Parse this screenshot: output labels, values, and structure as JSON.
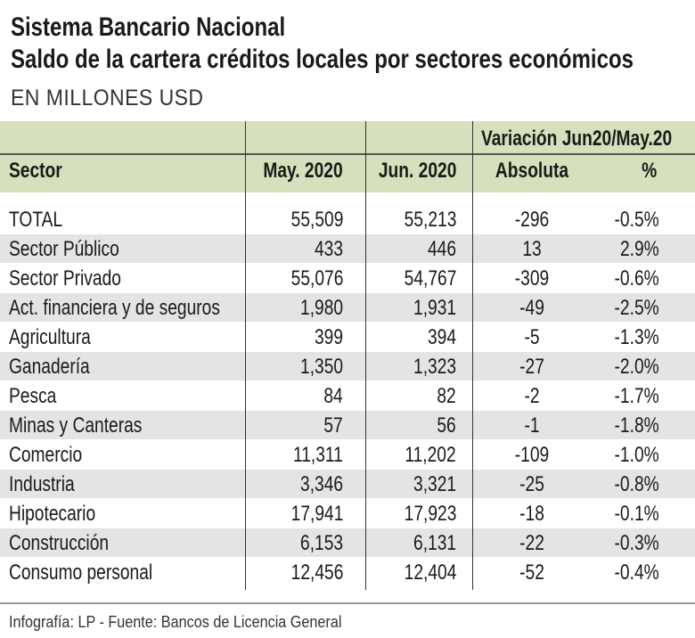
{
  "title": "Sistema Bancario Nacional",
  "subtitle": "Saldo de la cartera créditos locales por sectores económicos",
  "units": "EN MILLONES USD",
  "footer": "Infografía: LP - Fuente: Bancos de Licencia General",
  "colors": {
    "header_bg": "#d6e0bc",
    "stripe_bg": "#e4e4e4"
  },
  "chart_data": {
    "type": "table",
    "title": "Sistema Bancario Nacional",
    "subtitle": "Saldo de la cartera créditos locales por sectores económicos",
    "group_header": "Variación Jun20/May.20",
    "columns": [
      "Sector",
      "May. 2020",
      "Jun. 2020",
      "Absoluta",
      "%"
    ],
    "rows": [
      [
        "TOTAL",
        "55,509",
        "55,213",
        "-296",
        "-0.5%"
      ],
      [
        "Sector Público",
        "433",
        "446",
        "13",
        "2.9%"
      ],
      [
        "Sector Privado",
        "55,076",
        "54,767",
        "-309",
        "-0.6%"
      ],
      [
        "Act. financiera y de seguros",
        "1,980",
        "1,931",
        "-49",
        "-2.5%"
      ],
      [
        "Agricultura",
        "399",
        "394",
        "-5",
        "-1.3%"
      ],
      [
        "Ganadería",
        "1,350",
        "1,323",
        "-27",
        "-2.0%"
      ],
      [
        "Pesca",
        "84",
        "82",
        "-2",
        "-1.7%"
      ],
      [
        "Minas y Canteras",
        "57",
        "56",
        "-1",
        "-1.8%"
      ],
      [
        "Comercio",
        "11,311",
        "11,202",
        "-109",
        "-1.0%"
      ],
      [
        "Industria",
        "3,346",
        "3,321",
        "-25",
        "-0.8%"
      ],
      [
        "Hipotecario",
        "17,941",
        "17,923",
        "-18",
        "-0.1%"
      ],
      [
        "Construcción",
        "6,153",
        "6,131",
        "-22",
        "-0.3%"
      ],
      [
        "Consumo personal",
        "12,456",
        "12,404",
        "-52",
        "-0.4%"
      ]
    ]
  }
}
